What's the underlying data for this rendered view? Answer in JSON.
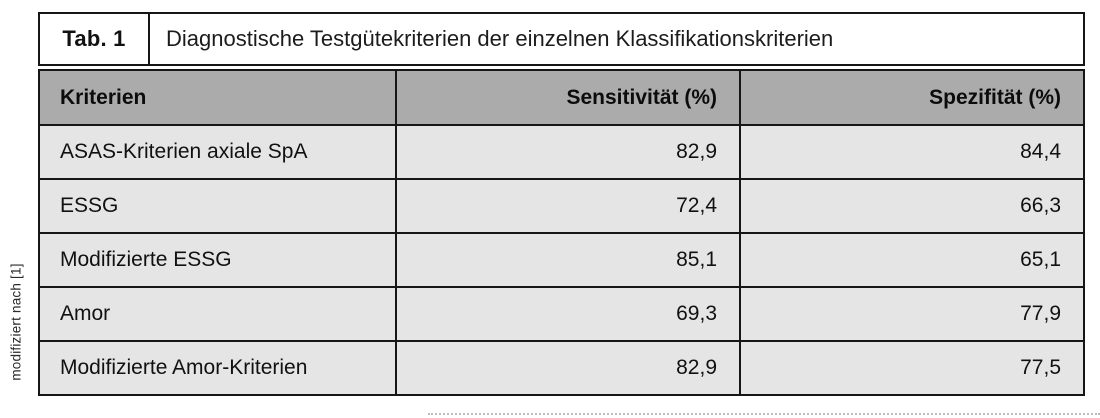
{
  "side_note": "modifiziert nach [1]",
  "table": {
    "label": "Tab. 1",
    "title": "Diagnostische Testgütekriterien der einzelnen Klassifikationskriterien",
    "columns": {
      "criteria": "Kriterien",
      "sensitivity": "Sensitivität (%)",
      "specificity": "Spezifität (%)"
    },
    "rows": [
      {
        "criteria": "ASAS-Kriterien axiale SpA",
        "sensitivity": "82,9",
        "specificity": "84,4"
      },
      {
        "criteria": "ESSG",
        "sensitivity": "72,4",
        "specificity": "66,3"
      },
      {
        "criteria": "Modifizierte ESSG",
        "sensitivity": "85,1",
        "specificity": "65,1"
      },
      {
        "criteria": "Amor",
        "sensitivity": "69,3",
        "specificity": "77,9"
      },
      {
        "criteria": "Modifizierte Amor-Kriterien",
        "sensitivity": "82,9",
        "specificity": "77,5"
      }
    ]
  },
  "colors": {
    "header_bg": "#ababab",
    "row_bg": "#e5e5e5",
    "border": "#161616",
    "page_bg": "#ffffff"
  }
}
